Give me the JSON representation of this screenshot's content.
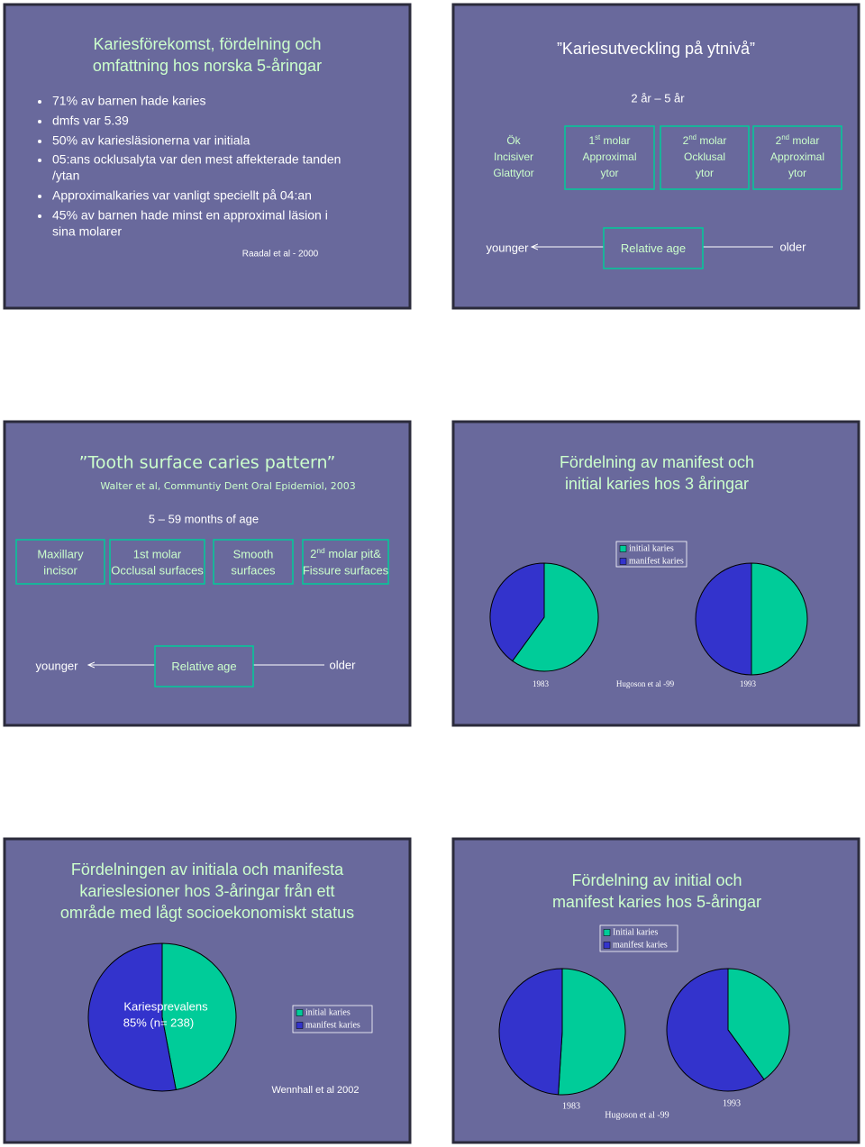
{
  "slides": [
    {
      "title": [
        "Kariesförekomst, fördelning och",
        "omfattning hos norska 5-åringar"
      ],
      "bullets": [
        [
          "71% av barnen hade karies"
        ],
        [
          "dmfs var 5.39"
        ],
        [
          "50% av kariesläsionerna var initiala"
        ],
        [
          "05:ans ocklusalyta var den mest affekterade tanden",
          "/ytan"
        ],
        [
          "Approximalkaries var vanligt speciellt på 04:an"
        ],
        [
          "45% av barnen hade minst en approximal läsion i",
          "sina molarer"
        ]
      ],
      "source": "Raadal et al - 2000"
    },
    {
      "title": [
        "”Kariesutveckling på ytnivå”"
      ],
      "subtitle": "2 år – 5 år",
      "boxes": [
        [
          "Ök",
          "Incisiver",
          "Glattytor"
        ],
        [
          [
            "1",
            "st",
            " molar"
          ],
          "Approximal",
          "ytor"
        ],
        [
          [
            "2",
            "nd",
            " molar"
          ],
          "Ocklusal",
          "ytor"
        ],
        [
          [
            "2",
            "nd",
            " molar"
          ],
          "Approximal",
          "ytor"
        ]
      ],
      "younger": "younger",
      "axis_label": "Relative age",
      "older": "older"
    },
    {
      "title": [
        "”Tooth surface caries pattern”"
      ],
      "subtitle": "Walter et al, Communtiy Dent Oral Epidemiol, 2003",
      "age": "5 – 59 months of age",
      "boxes": [
        [
          "Maxillary",
          "incisor"
        ],
        [
          "1st  molar",
          "Occlusal surfaces"
        ],
        [
          "Smooth",
          "surfaces"
        ],
        [
          [
            "2",
            "nd",
            " molar pit&"
          ],
          "Fissure surfaces"
        ]
      ],
      "younger": "younger",
      "axis_label": "Relative age",
      "older": "older"
    },
    {
      "title": [
        "Fördelning av manifest och",
        "initial karies hos 3 åringar"
      ],
      "legend": [
        "initial karies",
        "manifest karies"
      ],
      "colors": [
        "#00cc99",
        "#3333cc"
      ],
      "pies": [
        {
          "label": "1983",
          "values": [
            60,
            40
          ]
        },
        {
          "label": "1993",
          "values": [
            50,
            50
          ]
        }
      ],
      "source": "Hugoson et al -99"
    },
    {
      "title": [
        "Fördelningen av initiala och manifesta",
        "karieslesioner hos 3-åringar från ett",
        "område med lågt socioekonomiskt status"
      ],
      "note": [
        "Kariesprevalens",
        "85% (n= 238)"
      ],
      "legend": [
        "initial karies",
        "manifest karies"
      ],
      "colors": [
        "#00cc99",
        "#3333cc"
      ],
      "pies": [
        {
          "values": [
            47,
            53
          ]
        }
      ],
      "source": "Wennhall et al 2002"
    },
    {
      "title": [
        "Fördelning av initial och",
        "manifest karies hos 5-åringar"
      ],
      "legend": [
        "Initial karies",
        "manifest karies"
      ],
      "colors": [
        "#00cc99",
        "#3333cc"
      ],
      "pies": [
        {
          "label": "1983",
          "values": [
            51,
            49
          ]
        },
        {
          "label": "1993",
          "values": [
            40,
            60
          ]
        }
      ],
      "source": "Hugoson et al -99"
    }
  ]
}
